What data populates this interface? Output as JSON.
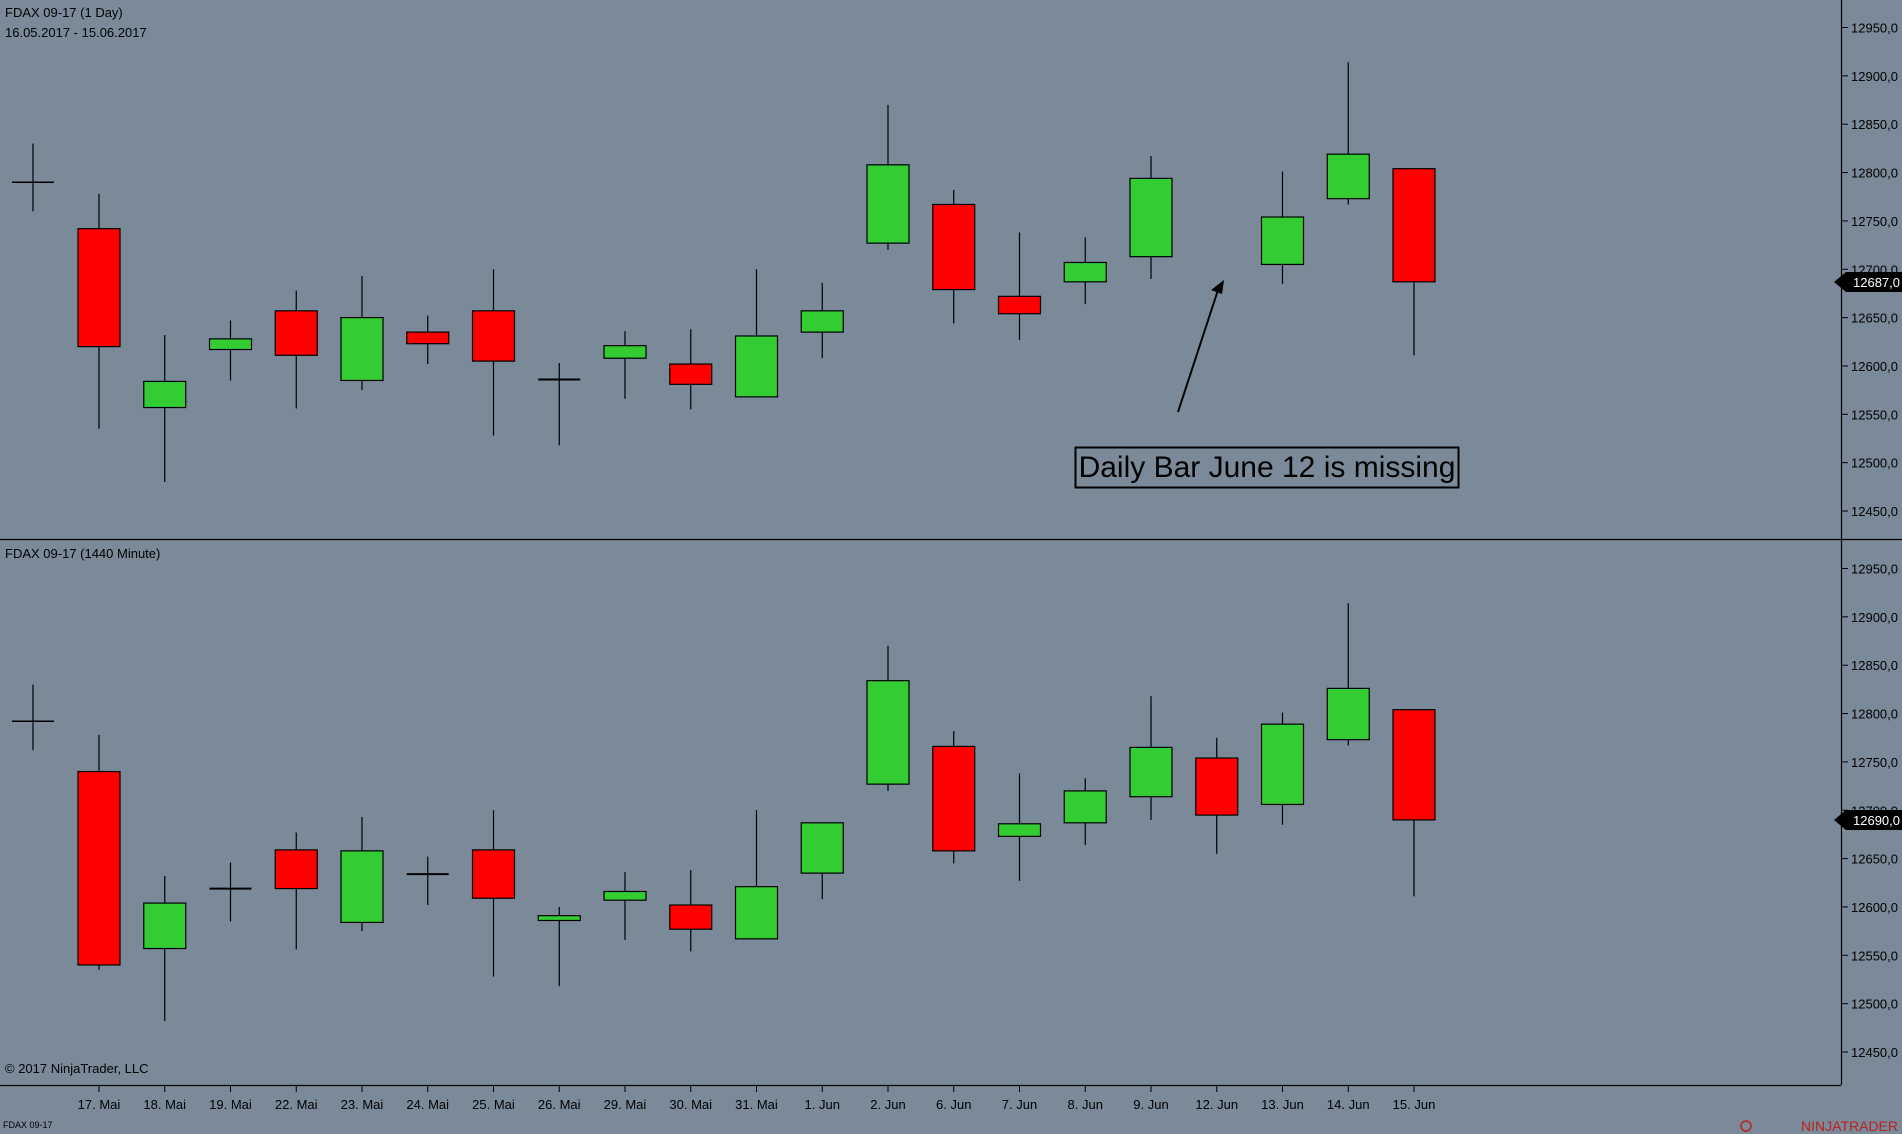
{
  "top_panel": {
    "title": "FDAX 09-17 (1 Day)",
    "date_range": "16.05.2017 - 15.06.2017",
    "last_price_label": "12687,0",
    "last_price": 12687,
    "annotation": "Daily Bar June 12 is missing"
  },
  "bottom_panel": {
    "title": "FDAX 09-17 (1440 Minute)",
    "last_price_label": "12690,0",
    "last_price": 12690,
    "copyright": "© 2017 NinjaTrader, LLC"
  },
  "footer": {
    "instrument": "FDAX 09-17",
    "logo_text": "NINJATRADER"
  },
  "colors": {
    "background": "#7a8a99",
    "up": "#33cc33",
    "down": "#ff0000",
    "wick": "#000000",
    "price_tag": "#000000"
  },
  "axis": {
    "ticks": [
      12450,
      12500,
      12550,
      12600,
      12650,
      12700,
      12750,
      12800,
      12850,
      12900,
      12950
    ],
    "tick_labels": [
      "12450,0",
      "12500,0",
      "12550,0",
      "12600,0",
      "12650,0",
      "12700,0",
      "12750,0",
      "12800,0",
      "12850,0",
      "12900,0",
      "12950,0"
    ]
  },
  "chart_data": [
    {
      "type": "candlestick",
      "title": "FDAX 09-17 (1 Day)",
      "x_labels": [
        "17. Mai",
        "18. Mai",
        "19. Mai",
        "22. Mai",
        "23. Mai",
        "24. Mai",
        "25. Mai",
        "26. Mai",
        "29. Mai",
        "30. Mai",
        "31. Mai",
        "1. Jun",
        "2. Jun",
        "6. Jun",
        "7. Jun",
        "8. Jun",
        "9. Jun",
        "12. Jun",
        "13. Jun",
        "14. Jun",
        "15. Jun"
      ],
      "prior_bar": {
        "open": 12790,
        "high": 12830,
        "low": 12760,
        "close": 12790
      },
      "bars": [
        {
          "date": "17. Mai",
          "open": 12742,
          "high": 12778,
          "low": 12535,
          "close": 12620
        },
        {
          "date": "18. Mai",
          "open": 12557,
          "high": 12632,
          "low": 12480,
          "close": 12584
        },
        {
          "date": "19. Mai",
          "open": 12617,
          "high": 12647,
          "low": 12585,
          "close": 12628
        },
        {
          "date": "22. Mai",
          "open": 12657,
          "high": 12678,
          "low": 12556,
          "close": 12611
        },
        {
          "date": "23. Mai",
          "open": 12585,
          "high": 12693,
          "low": 12575,
          "close": 12650
        },
        {
          "date": "24. Mai",
          "open": 12635,
          "high": 12652,
          "low": 12602,
          "close": 12623
        },
        {
          "date": "25. Mai",
          "open": 12657,
          "high": 12700,
          "low": 12528,
          "close": 12605
        },
        {
          "date": "26. Mai",
          "open": 12586,
          "high": 12603,
          "low": 12518,
          "close": 12586
        },
        {
          "date": "29. Mai",
          "open": 12608,
          "high": 12636,
          "low": 12566,
          "close": 12621
        },
        {
          "date": "30. Mai",
          "open": 12602,
          "high": 12638,
          "low": 12555,
          "close": 12581
        },
        {
          "date": "31. Mai",
          "open": 12568,
          "high": 12700,
          "low": 12568,
          "close": 12631
        },
        {
          "date": "1. Jun",
          "open": 12635,
          "high": 12686,
          "low": 12608,
          "close": 12657
        },
        {
          "date": "2. Jun",
          "open": 12727,
          "high": 12870,
          "low": 12720,
          "close": 12808
        },
        {
          "date": "6. Jun",
          "open": 12767,
          "high": 12782,
          "low": 12644,
          "close": 12679
        },
        {
          "date": "7. Jun",
          "open": 12672,
          "high": 12738,
          "low": 12627,
          "close": 12654
        },
        {
          "date": "8. Jun",
          "open": 12687,
          "high": 12733,
          "low": 12664,
          "close": 12707
        },
        {
          "date": "9. Jun",
          "open": 12713,
          "high": 12817,
          "low": 12690,
          "close": 12794
        },
        {
          "date": "13. Jun",
          "open": 12705,
          "high": 12801,
          "low": 12685,
          "close": 12754
        },
        {
          "date": "14. Jun",
          "open": 12773,
          "high": 12914,
          "low": 12767,
          "close": 12819
        },
        {
          "date": "15. Jun",
          "open": 12804,
          "high": 12804,
          "low": 12611,
          "close": 12687
        }
      ],
      "annotation": "Daily Bar June 12 is missing",
      "ylim": [
        12425,
        12975
      ]
    },
    {
      "type": "candlestick",
      "title": "FDAX 09-17 (1440 Minute)",
      "x_labels": [
        "17. Mai",
        "18. Mai",
        "19. Mai",
        "22. Mai",
        "23. Mai",
        "24. Mai",
        "25. Mai",
        "26. Mai",
        "29. Mai",
        "30. Mai",
        "31. Mai",
        "1. Jun",
        "2. Jun",
        "6. Jun",
        "7. Jun",
        "8. Jun",
        "9. Jun",
        "12. Jun",
        "13. Jun",
        "14. Jun",
        "15. Jun"
      ],
      "prior_bar": {
        "open": 12792,
        "high": 12830,
        "low": 12762,
        "close": 12792
      },
      "bars": [
        {
          "date": "17. Mai",
          "open": 12740,
          "high": 12778,
          "low": 12535,
          "close": 12540
        },
        {
          "date": "18. Mai",
          "open": 12557,
          "high": 12632,
          "low": 12482,
          "close": 12604
        },
        {
          "date": "19. Mai",
          "open": 12617,
          "high": 12646,
          "low": 12585,
          "close": 12619
        },
        {
          "date": "22. Mai",
          "open": 12659,
          "high": 12677,
          "low": 12556,
          "close": 12619
        },
        {
          "date": "23. Mai",
          "open": 12584,
          "high": 12693,
          "low": 12575,
          "close": 12658
        },
        {
          "date": "24. Mai",
          "open": 12634,
          "high": 12652,
          "low": 12602,
          "close": 12634
        },
        {
          "date": "25. Mai",
          "open": 12659,
          "high": 12700,
          "low": 12528,
          "close": 12609
        },
        {
          "date": "26. Mai",
          "open": 12586,
          "high": 12600,
          "low": 12518,
          "close": 12591
        },
        {
          "date": "29. Mai",
          "open": 12607,
          "high": 12636,
          "low": 12566,
          "close": 12616
        },
        {
          "date": "30. Mai",
          "open": 12602,
          "high": 12638,
          "low": 12554,
          "close": 12577
        },
        {
          "date": "31. Mai",
          "open": 12567,
          "high": 12700,
          "low": 12567,
          "close": 12621
        },
        {
          "date": "1. Jun",
          "open": 12635,
          "high": 12686,
          "low": 12608,
          "close": 12687
        },
        {
          "date": "2. Jun",
          "open": 12727,
          "high": 12870,
          "low": 12720,
          "close": 12834
        },
        {
          "date": "6. Jun",
          "open": 12766,
          "high": 12782,
          "low": 12645,
          "close": 12658
        },
        {
          "date": "7. Jun",
          "open": 12673,
          "high": 12738,
          "low": 12627,
          "close": 12686
        },
        {
          "date": "8. Jun",
          "open": 12687,
          "high": 12733,
          "low": 12664,
          "close": 12720
        },
        {
          "date": "9. Jun",
          "open": 12714,
          "high": 12818,
          "low": 12690,
          "close": 12765
        },
        {
          "date": "12. Jun",
          "open": 12754,
          "high": 12775,
          "low": 12655,
          "close": 12695
        },
        {
          "date": "13. Jun",
          "open": 12706,
          "high": 12801,
          "low": 12685,
          "close": 12789
        },
        {
          "date": "14. Jun",
          "open": 12773,
          "high": 12914,
          "low": 12767,
          "close": 12826
        },
        {
          "date": "15. Jun",
          "open": 12804,
          "high": 12804,
          "low": 12611,
          "close": 12690
        }
      ],
      "ylim": [
        12425,
        12975
      ]
    }
  ]
}
